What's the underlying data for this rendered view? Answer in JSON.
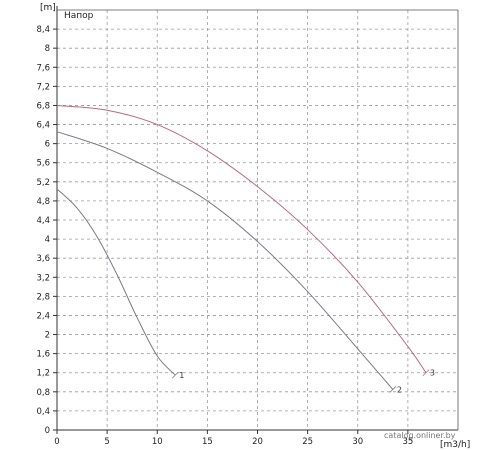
{
  "chart_data": {
    "type": "line",
    "title": "Напор",
    "ylabel": "[m]",
    "xlabel": "[m3/h]",
    "xlim": [
      0,
      40
    ],
    "ylim": [
      0,
      8.8
    ],
    "grid": true,
    "x_ticks": [
      0,
      5,
      10,
      15,
      20,
      25,
      30,
      35
    ],
    "y_ticks": [
      0,
      0.4,
      0.8,
      1.2,
      1.6,
      2,
      2.4,
      2.8,
      3.2,
      3.6,
      4,
      4.4,
      4.8,
      5.2,
      5.6,
      6,
      6.4,
      6.8,
      7.2,
      7.6,
      8,
      8.4
    ],
    "series": [
      {
        "name": "1",
        "color": "#7a7a8a",
        "points": [
          [
            0,
            5.05
          ],
          [
            2,
            4.65
          ],
          [
            4,
            4.05
          ],
          [
            6,
            3.25
          ],
          [
            8,
            2.35
          ],
          [
            10,
            1.55
          ],
          [
            11.8,
            1.15
          ]
        ]
      },
      {
        "name": "2",
        "color": "#7a7a8a",
        "points": [
          [
            0,
            6.25
          ],
          [
            5,
            5.9
          ],
          [
            10,
            5.4
          ],
          [
            15,
            4.8
          ],
          [
            20,
            3.95
          ],
          [
            25,
            2.9
          ],
          [
            30,
            1.7
          ],
          [
            33.5,
            0.85
          ]
        ]
      },
      {
        "name": "3",
        "color": "#b86a7e",
        "points": [
          [
            0,
            6.8
          ],
          [
            5,
            6.7
          ],
          [
            10,
            6.4
          ],
          [
            15,
            5.85
          ],
          [
            20,
            5.1
          ],
          [
            25,
            4.2
          ],
          [
            30,
            3.1
          ],
          [
            35,
            1.75
          ],
          [
            36.8,
            1.2
          ]
        ]
      }
    ]
  },
  "watermark": "catalog.onliner.by"
}
